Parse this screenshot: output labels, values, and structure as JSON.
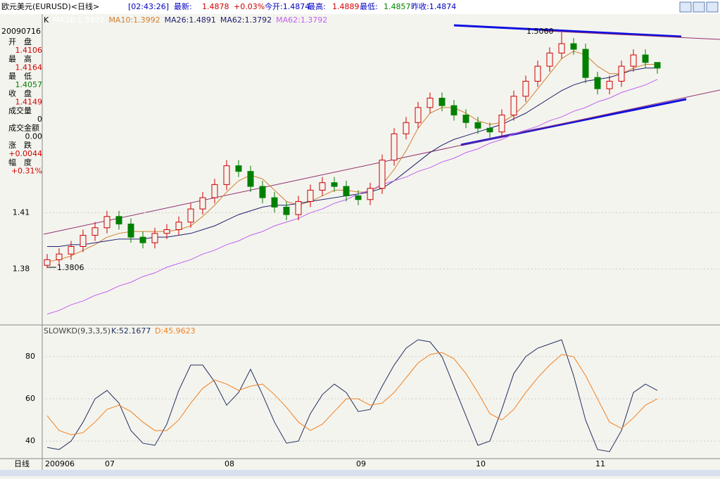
{
  "header": {
    "title": "欧元美元(EURUSD)<日线>",
    "time": "[02:43:26]",
    "last_label": "最新:",
    "last": "1.4878",
    "change_pct": "+0.03%",
    "open_text": "今开:1.4874",
    "high_label": "最高:",
    "high": "1.4889",
    "low_label": "最低:",
    "low": "1.4857",
    "prev_close_text": "昨收:1.4874"
  },
  "info": {
    "date": "20090716",
    "items": [
      {
        "label": "开　盘",
        "value": "1.4106"
      },
      {
        "label": "最　高",
        "value": "1.4164"
      },
      {
        "label": "最　低",
        "value": "1.4057"
      },
      {
        "label": "收　盘",
        "value": "1.4149"
      },
      {
        "label": "成交量",
        "value": "0"
      },
      {
        "label": "成交金额",
        "value": "0.00"
      },
      {
        "label": "涨　跌",
        "value": "+0.0044"
      },
      {
        "label": "幅　度",
        "value": "+0.31%"
      }
    ]
  },
  "chart_data": {
    "type": "candlestick",
    "legend": [
      "K",
      "MA10:1.3992",
      "MA10:1.3992",
      "MA26:1.4891",
      "MA62:1.3792",
      "MA62:1.3792"
    ],
    "annotations": {
      "high": "1.5060",
      "low": "1.3806"
    },
    "period_label": "日线",
    "categories": [
      "200906",
      null,
      null,
      null,
      null,
      "07",
      null,
      null,
      null,
      null,
      null,
      null,
      null,
      null,
      null,
      "08",
      null,
      null,
      null,
      null,
      null,
      null,
      null,
      null,
      null,
      null,
      "09",
      null,
      null,
      null,
      null,
      null,
      null,
      null,
      null,
      null,
      "10",
      null,
      null,
      null,
      null,
      null,
      null,
      null,
      null,
      null,
      "11",
      null,
      null,
      null,
      null,
      null
    ],
    "ylim": [
      1.351,
      1.515
    ],
    "yticks": [
      1.41,
      1.38
    ],
    "open": [
      1.382,
      1.385,
      1.388,
      1.392,
      1.398,
      1.402,
      1.408,
      1.404,
      1.397,
      1.394,
      1.399,
      1.401,
      1.405,
      1.412,
      1.418,
      1.425,
      1.435,
      1.432,
      1.424,
      1.418,
      1.413,
      1.409,
      1.416,
      1.422,
      1.426,
      1.424,
      1.419,
      1.417,
      1.423,
      1.438,
      1.452,
      1.458,
      1.466,
      1.471,
      1.467,
      1.462,
      1.458,
      1.455,
      1.453,
      1.462,
      1.472,
      1.48,
      1.488,
      1.495,
      1.5,
      1.497,
      1.482,
      1.476,
      1.48,
      1.488,
      1.494,
      1.49
    ],
    "high": [
      1.388,
      1.391,
      1.395,
      1.401,
      1.405,
      1.411,
      1.411,
      1.407,
      1.4,
      1.402,
      1.404,
      1.408,
      1.415,
      1.421,
      1.428,
      1.438,
      1.438,
      1.435,
      1.427,
      1.421,
      1.416,
      1.419,
      1.425,
      1.429,
      1.429,
      1.427,
      1.422,
      1.426,
      1.441,
      1.455,
      1.461,
      1.469,
      1.474,
      1.474,
      1.47,
      1.465,
      1.461,
      1.458,
      1.465,
      1.475,
      1.483,
      1.491,
      1.498,
      1.506,
      1.503,
      1.5,
      1.485,
      1.483,
      1.491,
      1.497,
      1.497,
      1.489
    ],
    "low": [
      1.3806,
      1.382,
      1.385,
      1.389,
      1.395,
      1.399,
      1.401,
      1.394,
      1.391,
      1.391,
      1.396,
      1.398,
      1.402,
      1.409,
      1.415,
      1.422,
      1.429,
      1.421,
      1.415,
      1.41,
      1.406,
      1.406,
      1.413,
      1.419,
      1.421,
      1.416,
      1.414,
      1.414,
      1.42,
      1.435,
      1.449,
      1.455,
      1.463,
      1.464,
      1.459,
      1.455,
      1.452,
      1.45,
      1.45,
      1.459,
      1.469,
      1.477,
      1.485,
      1.492,
      1.494,
      1.479,
      1.473,
      1.473,
      1.477,
      1.485,
      1.487,
      1.484
    ],
    "close": [
      1.385,
      1.388,
      1.392,
      1.398,
      1.402,
      1.408,
      1.404,
      1.397,
      1.394,
      1.399,
      1.401,
      1.405,
      1.412,
      1.418,
      1.425,
      1.435,
      1.432,
      1.424,
      1.418,
      1.413,
      1.409,
      1.416,
      1.422,
      1.426,
      1.424,
      1.419,
      1.417,
      1.423,
      1.438,
      1.452,
      1.458,
      1.466,
      1.471,
      1.467,
      1.462,
      1.458,
      1.455,
      1.453,
      1.462,
      1.472,
      1.48,
      1.488,
      1.495,
      1.5,
      1.497,
      1.482,
      1.476,
      1.48,
      1.488,
      1.494,
      1.49,
      1.487
    ],
    "up_color": "#d00000",
    "down_color": "#008000",
    "series": [
      {
        "name": "MA10",
        "color": "#d08030",
        "values": [
          1.384,
          1.385,
          1.387,
          1.39,
          1.393,
          1.397,
          1.399,
          1.4,
          1.4,
          1.4,
          1.4,
          1.401,
          1.403,
          1.408,
          1.414,
          1.421,
          1.427,
          1.43,
          1.428,
          1.422,
          1.416,
          1.414,
          1.416,
          1.419,
          1.422,
          1.422,
          1.421,
          1.421,
          1.425,
          1.433,
          1.443,
          1.455,
          1.463,
          1.466,
          1.466,
          1.463,
          1.459,
          1.457,
          1.458,
          1.462,
          1.468,
          1.476,
          1.484,
          1.492,
          1.496,
          1.494,
          1.488,
          1.484,
          1.484,
          1.487,
          1.489,
          1.489
        ]
      },
      {
        "name": "MA26",
        "color": "#202070",
        "values": [
          1.392,
          1.392,
          1.393,
          1.393,
          1.394,
          1.395,
          1.396,
          1.396,
          1.396,
          1.397,
          1.397,
          1.398,
          1.399,
          1.401,
          1.403,
          1.406,
          1.409,
          1.411,
          1.413,
          1.414,
          1.414,
          1.415,
          1.416,
          1.417,
          1.418,
          1.419,
          1.42,
          1.421,
          1.423,
          1.427,
          1.432,
          1.437,
          1.442,
          1.446,
          1.449,
          1.451,
          1.453,
          1.455,
          1.457,
          1.46,
          1.463,
          1.467,
          1.471,
          1.475,
          1.478,
          1.48,
          1.481,
          1.482,
          1.484,
          1.486,
          1.487,
          1.487
        ]
      },
      {
        "name": "MA62",
        "color": "#c060f0",
        "values": [
          1.356,
          1.358,
          1.361,
          1.363,
          1.366,
          1.368,
          1.371,
          1.373,
          1.376,
          1.378,
          1.381,
          1.383,
          1.385,
          1.388,
          1.39,
          1.393,
          1.395,
          1.398,
          1.4,
          1.403,
          1.405,
          1.407,
          1.41,
          1.412,
          1.415,
          1.417,
          1.42,
          1.422,
          1.425,
          1.427,
          1.429,
          1.432,
          1.434,
          1.437,
          1.439,
          1.442,
          1.444,
          1.447,
          1.449,
          1.452,
          1.454,
          1.456,
          1.459,
          1.461,
          1.464,
          1.466,
          1.469,
          1.471,
          1.474,
          1.476,
          1.478,
          1.481
        ]
      }
    ],
    "kd": {
      "title": "SLOWKD(9,3,3,5)",
      "k_label": "K:52.1677",
      "d_label": "D:45.9623",
      "ylim": [
        31.7,
        94
      ],
      "yticks": [
        80,
        60,
        40
      ],
      "series": [
        {
          "name": "K",
          "color": "#203060",
          "values": [
            37,
            36,
            40,
            49,
            60,
            64,
            58,
            45,
            39,
            38,
            48,
            64,
            76,
            76,
            68,
            57,
            63,
            74,
            62,
            49,
            39,
            40,
            53,
            62,
            67,
            63,
            54,
            55,
            66,
            76,
            84,
            88,
            87,
            80,
            66,
            52,
            38,
            40,
            55,
            72,
            80,
            84,
            86,
            88,
            71,
            50,
            36,
            35,
            45,
            63,
            67,
            64
          ]
        },
        {
          "name": "D",
          "color": "#f08020",
          "values": [
            52,
            45,
            43,
            44,
            49,
            55,
            57,
            54,
            49,
            45,
            45,
            50,
            58,
            65,
            69,
            67,
            64,
            66,
            67,
            62,
            56,
            49,
            45,
            48,
            54,
            60,
            60,
            57,
            58,
            63,
            70,
            77,
            81,
            82,
            79,
            72,
            63,
            53,
            50,
            55,
            63,
            70,
            76,
            81,
            80,
            71,
            60,
            49,
            46,
            51,
            57,
            60
          ]
        }
      ]
    }
  }
}
